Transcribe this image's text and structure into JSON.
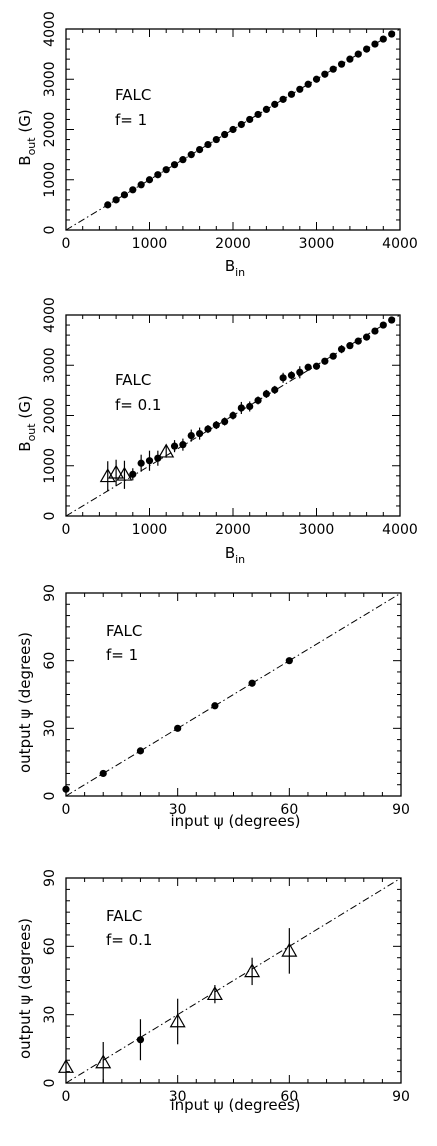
{
  "chart_data": [
    {
      "type": "scatter",
      "xlabel": "B",
      "xlabel_sub": "in",
      "ylabel": "B",
      "ylabel_sub": "out",
      "ylabel_suffix": " (G)",
      "xlim": [
        0,
        4000
      ],
      "ylim": [
        0,
        4000
      ],
      "xticks": [
        0,
        1000,
        2000,
        3000,
        4000
      ],
      "yticks": [
        0,
        1000,
        2000,
        3000,
        4000
      ],
      "xminor": 200,
      "yminor": 200,
      "annotations": [
        "FALC",
        "f=  1"
      ],
      "reference_line": "y = x (dash-dot)",
      "series": [
        {
          "marker": "filled-circle",
          "points": [
            {
              "x": 500,
              "y": 500
            },
            {
              "x": 600,
              "y": 600
            },
            {
              "x": 700,
              "y": 700
            },
            {
              "x": 800,
              "y": 800
            },
            {
              "x": 900,
              "y": 900
            },
            {
              "x": 1000,
              "y": 1000
            },
            {
              "x": 1100,
              "y": 1100
            },
            {
              "x": 1200,
              "y": 1200
            },
            {
              "x": 1300,
              "y": 1300
            },
            {
              "x": 1400,
              "y": 1400
            },
            {
              "x": 1500,
              "y": 1500
            },
            {
              "x": 1600,
              "y": 1600
            },
            {
              "x": 1700,
              "y": 1700
            },
            {
              "x": 1800,
              "y": 1800
            },
            {
              "x": 1900,
              "y": 1900
            },
            {
              "x": 2000,
              "y": 2000
            },
            {
              "x": 2100,
              "y": 2100
            },
            {
              "x": 2200,
              "y": 2200
            },
            {
              "x": 2300,
              "y": 2300
            },
            {
              "x": 2400,
              "y": 2400
            },
            {
              "x": 2500,
              "y": 2500
            },
            {
              "x": 2600,
              "y": 2600
            },
            {
              "x": 2700,
              "y": 2700
            },
            {
              "x": 2800,
              "y": 2800
            },
            {
              "x": 2900,
              "y": 2900
            },
            {
              "x": 3000,
              "y": 3000
            },
            {
              "x": 3100,
              "y": 3100
            },
            {
              "x": 3200,
              "y": 3200
            },
            {
              "x": 3300,
              "y": 3300
            },
            {
              "x": 3400,
              "y": 3400
            },
            {
              "x": 3500,
              "y": 3500
            },
            {
              "x": 3600,
              "y": 3600
            },
            {
              "x": 3700,
              "y": 3700
            },
            {
              "x": 3800,
              "y": 3800
            },
            {
              "x": 3900,
              "y": 3900
            }
          ]
        }
      ]
    },
    {
      "type": "scatter",
      "xlabel": "B",
      "xlabel_sub": "in",
      "ylabel": "B",
      "ylabel_sub": "out",
      "ylabel_suffix": " (G)",
      "xlim": [
        0,
        4000
      ],
      "ylim": [
        0,
        4000
      ],
      "xticks": [
        0,
        1000,
        2000,
        3000,
        4000
      ],
      "yticks": [
        0,
        1000,
        2000,
        3000,
        4000
      ],
      "xminor": 200,
      "yminor": 200,
      "annotations": [
        "FALC",
        "f=  0.1"
      ],
      "reference_line": "y = x (dash-dot)",
      "series": [
        {
          "marker": "open-triangle",
          "points": [
            {
              "x": 500,
              "y": 790,
              "err": 300
            },
            {
              "x": 600,
              "y": 860,
              "err": 260
            },
            {
              "x": 700,
              "y": 820,
              "err": 280
            },
            {
              "x": 1200,
              "y": 1280,
              "err": 120
            }
          ]
        },
        {
          "marker": "filled-circle",
          "points": [
            {
              "x": 800,
              "y": 830,
              "err": 120
            },
            {
              "x": 900,
              "y": 1050,
              "err": 170
            },
            {
              "x": 1000,
              "y": 1100,
              "err": 200
            },
            {
              "x": 1100,
              "y": 1150,
              "err": 150
            },
            {
              "x": 1300,
              "y": 1390,
              "err": 120
            },
            {
              "x": 1400,
              "y": 1420,
              "err": 120
            },
            {
              "x": 1500,
              "y": 1600,
              "err": 120
            },
            {
              "x": 1600,
              "y": 1640,
              "err": 120
            },
            {
              "x": 1700,
              "y": 1730,
              "err": 80
            },
            {
              "x": 1800,
              "y": 1810,
              "err": 80
            },
            {
              "x": 1900,
              "y": 1880,
              "err": 80
            },
            {
              "x": 2000,
              "y": 2000,
              "err": 80
            },
            {
              "x": 2100,
              "y": 2150,
              "err": 120
            },
            {
              "x": 2200,
              "y": 2180,
              "err": 100
            },
            {
              "x": 2300,
              "y": 2300,
              "err": 80
            },
            {
              "x": 2400,
              "y": 2430,
              "err": 80
            },
            {
              "x": 2500,
              "y": 2510,
              "err": 80
            },
            {
              "x": 2600,
              "y": 2750,
              "err": 100
            },
            {
              "x": 2700,
              "y": 2800,
              "err": 80
            },
            {
              "x": 2800,
              "y": 2860,
              "err": 120
            },
            {
              "x": 2900,
              "y": 2960,
              "err": 60
            },
            {
              "x": 3000,
              "y": 2980,
              "err": 60
            },
            {
              "x": 3100,
              "y": 3080,
              "err": 60
            },
            {
              "x": 3200,
              "y": 3180,
              "err": 60
            },
            {
              "x": 3300,
              "y": 3320,
              "err": 80
            },
            {
              "x": 3400,
              "y": 3390,
              "err": 60
            },
            {
              "x": 3500,
              "y": 3480,
              "err": 60
            },
            {
              "x": 3600,
              "y": 3560,
              "err": 60
            },
            {
              "x": 3700,
              "y": 3680,
              "err": 60
            },
            {
              "x": 3800,
              "y": 3800,
              "err": 60
            },
            {
              "x": 3900,
              "y": 3900,
              "err": 60
            }
          ]
        }
      ]
    },
    {
      "type": "scatter",
      "xlabel": "input ψ (degrees)",
      "ylabel": "output ψ (degrees)",
      "xlim": [
        0,
        90
      ],
      "ylim": [
        0,
        90
      ],
      "xticks": [
        0,
        30,
        60,
        90
      ],
      "yticks": [
        0,
        30,
        60,
        90
      ],
      "xminor": 5,
      "yminor": 5,
      "annotations": [
        "FALC",
        "f=  1"
      ],
      "reference_line": "y = x (dash-dot)",
      "series": [
        {
          "marker": "filled-circle",
          "points": [
            {
              "x": 0,
              "y": 3
            },
            {
              "x": 10,
              "y": 10
            },
            {
              "x": 20,
              "y": 20
            },
            {
              "x": 30,
              "y": 30
            },
            {
              "x": 40,
              "y": 40
            },
            {
              "x": 50,
              "y": 50
            },
            {
              "x": 60,
              "y": 60
            }
          ]
        }
      ]
    },
    {
      "type": "scatter",
      "xlabel": "input ψ (degrees)",
      "ylabel": "output ψ (degrees)",
      "xlim": [
        0,
        90
      ],
      "ylim": [
        0,
        90
      ],
      "xticks": [
        0,
        30,
        60,
        90
      ],
      "yticks": [
        0,
        30,
        60,
        90
      ],
      "xminor": 5,
      "yminor": 5,
      "annotations": [
        "FALC",
        "f=  0.1"
      ],
      "reference_line": "y = x (dash-dot)",
      "series": [
        {
          "marker": "open-triangle",
          "points": [
            {
              "x": 0,
              "y": 7,
              "err": 0
            },
            {
              "x": 10,
              "y": 9,
              "err": 9
            },
            {
              "x": 30,
              "y": 27,
              "err": 10
            },
            {
              "x": 40,
              "y": 39,
              "err": 4
            },
            {
              "x": 50,
              "y": 49,
              "err": 6
            },
            {
              "x": 60,
              "y": 58,
              "err": 10
            }
          ]
        },
        {
          "marker": "filled-circle",
          "points": [
            {
              "x": 20,
              "y": 19,
              "err": 9
            }
          ]
        }
      ]
    }
  ]
}
